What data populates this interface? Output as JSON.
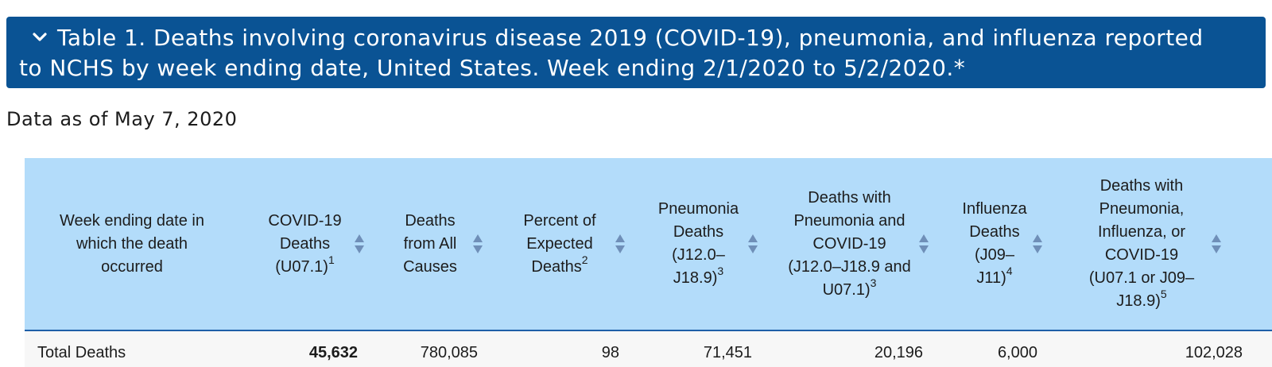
{
  "banner": {
    "line1": "Table 1. Deaths involving coronavirus disease 2019 (COVID-19), pneumonia, and influenza reported",
    "line2": "to NCHS by week ending date, United States. Week ending 2/1/2020 to 5/2/2020.*"
  },
  "subtitle": "Data as of May 7, 2020",
  "colors": {
    "banner_bg": "#0a5394",
    "header_bg": "#b3dcfa",
    "header_border": "#1e5fa8",
    "sort_icon": "#6f8fb8",
    "row_bg": "#f7f7f7"
  },
  "table": {
    "columns": [
      {
        "lines": [
          "Week ending date in",
          "which the death",
          "occurred"
        ],
        "sup": ""
      },
      {
        "lines": [
          "COVID-19",
          "Deaths",
          "(U07.1)"
        ],
        "sup": "1"
      },
      {
        "lines": [
          "Deaths",
          "from All",
          "Causes"
        ],
        "sup": ""
      },
      {
        "lines": [
          "Percent of",
          "Expected",
          "Deaths"
        ],
        "sup": "2"
      },
      {
        "lines": [
          "Pneumonia",
          "Deaths",
          "(J12.0–",
          "J18.9)"
        ],
        "sup": "3"
      },
      {
        "lines": [
          "Deaths with",
          "Pneumonia and",
          "COVID-19",
          "(J12.0–J18.9 and",
          "U07.1)"
        ],
        "sup": "3"
      },
      {
        "lines": [
          "Influenza",
          "Deaths",
          "(J09–",
          "J11)"
        ],
        "sup": "4"
      },
      {
        "lines": [
          "Deaths with",
          "Pneumonia,",
          "Influenza, or",
          "COVID-19",
          "(U07.1 or J09–",
          "J18.9)"
        ],
        "sup": "5"
      }
    ],
    "rows": [
      {
        "cells": [
          "Total Deaths",
          "45,632",
          "780,085",
          "98",
          "71,451",
          "20,196",
          "6,000",
          "102,028"
        ]
      }
    ]
  }
}
